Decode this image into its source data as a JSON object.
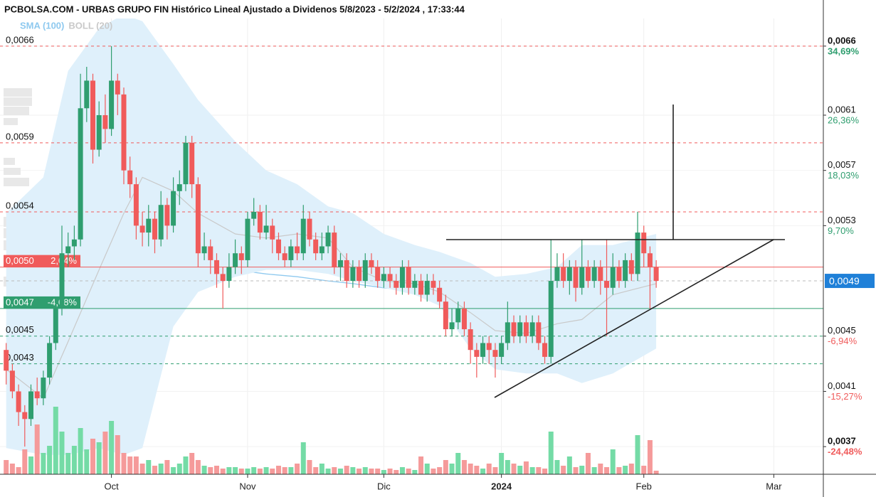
{
  "chart_data": {
    "type": "candlestick",
    "title": "PCBOLSA.COM - URBAS GRUPO FIN Histórico Lineal Ajustado a Dividenos 5/8/2023 - 5/2/2024 , 17:33:44",
    "up_color": "#2f9e6f",
    "down_color": "#f05b5b",
    "volume_up_color": "#74dba6",
    "volume_down_color": "#f59a9a",
    "ylim": [
      0.0035,
      0.0068
    ],
    "yticks": [
      {
        "value": 0.0066,
        "label": "0,0066"
      },
      {
        "value": 0.0061,
        "label": "0,0061"
      },
      {
        "value": 0.0057,
        "label": "0,0057"
      },
      {
        "value": 0.0053,
        "label": "0,0053"
      },
      {
        "value": 0.0045,
        "label": "0,0045"
      },
      {
        "value": 0.0041,
        "label": "0,0041"
      },
      {
        "value": 0.0037,
        "label": "0,0037"
      }
    ],
    "ytick_changes": [
      "34,69%",
      "26,36%",
      "18,03%",
      "9,70%",
      "-6,94%",
      "-15,27%",
      "-24,48%"
    ],
    "xlim": [
      -1,
      132
    ],
    "xticks": [
      {
        "value": 17,
        "label": "Oct"
      },
      {
        "value": 39,
        "label": "Nov"
      },
      {
        "value": 61,
        "label": "Dic"
      },
      {
        "value": 80,
        "label": "2024"
      },
      {
        "value": 103,
        "label": "Feb"
      },
      {
        "value": 124,
        "label": "Mar"
      }
    ],
    "grid": true,
    "levels": [
      {
        "value": 0.0066,
        "label": "0,0066",
        "color": "#f05b5b",
        "style": "dashed"
      },
      {
        "value": 0.0059,
        "label": "0,0059",
        "color": "#f05b5b",
        "style": "dashed"
      },
      {
        "value": 0.0054,
        "label": "0,0054",
        "color": "#f05b5b",
        "style": "dashed"
      },
      {
        "value": 0.005,
        "label": "0,0050",
        "change": "2,04%",
        "color": "#f05b5b",
        "style": "solid"
      },
      {
        "value": 0.0047,
        "label": "0,0047",
        "change": "-4,08%",
        "color": "#2f9e6f",
        "style": "solid"
      },
      {
        "value": 0.0045,
        "label": "0,0045",
        "color": "#2f9e6f",
        "style": "dashed"
      },
      {
        "value": 0.0043,
        "label": "0,0043",
        "color": "#2f9e6f",
        "style": "dashed"
      }
    ],
    "last": {
      "value": 0.0049,
      "label": "0,0049",
      "color": "#1f80d8"
    },
    "indicators": [
      {
        "name": "SMA (100)",
        "color": "#8ec9ef",
        "x": [
          0,
          6,
          10,
          15,
          19,
          22,
          27,
          31,
          37,
          42,
          47,
          52,
          56,
          61,
          66,
          70,
          75,
          79,
          84,
          89,
          93,
          98,
          105
        ],
        "values": [
          0.00539,
          0.00529,
          0.00524,
          0.00521,
          0.00524,
          0.0052,
          0.00513,
          0.00506,
          0.00498,
          0.00495,
          0.00493,
          0.0049,
          0.00488,
          0.00485,
          0.00483,
          0.00483,
          0.00482,
          0.00482,
          0.00482,
          0.00488,
          0.00489,
          0.00495,
          0.00499
        ]
      },
      {
        "name": "BOLL (20)",
        "color": "#c9c9c9",
        "band_color": "#dff0fb",
        "x": [
          0,
          6,
          10,
          15,
          19,
          22,
          27,
          31,
          37,
          42,
          47,
          52,
          56,
          61,
          66,
          70,
          75,
          79,
          84,
          89,
          93,
          98,
          105
        ],
        "upper": [
          0.00539,
          0.00565,
          0.00642,
          0.00673,
          0.00683,
          0.00678,
          0.00647,
          0.00621,
          0.00591,
          0.0057,
          0.0056,
          0.00544,
          0.00539,
          0.00524,
          0.00516,
          0.00511,
          0.00503,
          0.00493,
          0.00495,
          0.005,
          0.00516,
          0.00516,
          0.00524
        ],
        "middle": [
          0.00426,
          0.00405,
          0.00446,
          0.00498,
          0.00539,
          0.00565,
          0.00555,
          0.00539,
          0.00524,
          0.00521,
          0.00524,
          0.00521,
          0.005,
          0.0049,
          0.00488,
          0.00482,
          0.00467,
          0.00454,
          0.00452,
          0.00459,
          0.00462,
          0.0048,
          0.00488
        ],
        "lower": [
          0.00369,
          0.00364,
          0.00364,
          0.00369,
          0.00364,
          0.00369,
          0.00457,
          0.00482,
          0.00493,
          0.00498,
          0.00498,
          0.00495,
          0.0049,
          0.00485,
          0.0048,
          0.00472,
          0.00441,
          0.00426,
          0.00423,
          0.00423,
          0.00416,
          0.00423,
          0.00441
        ]
      }
    ],
    "ohlc": [
      [
        0.0044,
        0.00445,
        0.00415,
        0.00425
      ],
      [
        0.00425,
        0.0043,
        0.00405,
        0.0041
      ],
      [
        0.0041,
        0.00415,
        0.00385,
        0.00395
      ],
      [
        0.00395,
        0.004,
        0.0037,
        0.0039
      ],
      [
        0.0039,
        0.00415,
        0.00385,
        0.0041
      ],
      [
        0.0041,
        0.0042,
        0.004,
        0.00405
      ],
      [
        0.00405,
        0.00425,
        0.004,
        0.0042
      ],
      [
        0.0042,
        0.0045,
        0.00415,
        0.00445
      ],
      [
        0.00445,
        0.00475,
        0.0044,
        0.0047
      ],
      [
        0.0047,
        0.0053,
        0.00465,
        0.0051
      ],
      [
        0.0051,
        0.00525,
        0.005,
        0.00515
      ],
      [
        0.00515,
        0.0053,
        0.00505,
        0.0052
      ],
      [
        0.0052,
        0.0064,
        0.00515,
        0.00615
      ],
      [
        0.00615,
        0.00645,
        0.00605,
        0.00635
      ],
      [
        0.00635,
        0.0064,
        0.00575,
        0.00585
      ],
      [
        0.00585,
        0.0062,
        0.0058,
        0.0061
      ],
      [
        0.0061,
        0.00625,
        0.0059,
        0.006
      ],
      [
        0.006,
        0.0066,
        0.00595,
        0.00635
      ],
      [
        0.00635,
        0.0064,
        0.0061,
        0.00625
      ],
      [
        0.00625,
        0.0063,
        0.0056,
        0.0057
      ],
      [
        0.0057,
        0.0058,
        0.0055,
        0.0056
      ],
      [
        0.0056,
        0.00565,
        0.0052,
        0.0053
      ],
      [
        0.0053,
        0.0054,
        0.00515,
        0.00525
      ],
      [
        0.00525,
        0.00545,
        0.00515,
        0.00535
      ],
      [
        0.00535,
        0.0054,
        0.0051,
        0.0052
      ],
      [
        0.0052,
        0.00555,
        0.00515,
        0.00545
      ],
      [
        0.00545,
        0.0055,
        0.0052,
        0.0053
      ],
      [
        0.0053,
        0.00565,
        0.00525,
        0.00555
      ],
      [
        0.00555,
        0.0057,
        0.00545,
        0.0056
      ],
      [
        0.0056,
        0.00595,
        0.00555,
        0.0059
      ],
      [
        0.0059,
        0.00595,
        0.0055,
        0.0056
      ],
      [
        0.0056,
        0.00565,
        0.005,
        0.0051
      ],
      [
        0.0051,
        0.00525,
        0.00505,
        0.00515
      ],
      [
        0.00515,
        0.0052,
        0.00495,
        0.00505
      ],
      [
        0.00505,
        0.0051,
        0.00485,
        0.00495
      ],
      [
        0.00495,
        0.005,
        0.0047,
        0.0049
      ],
      [
        0.0049,
        0.0051,
        0.00485,
        0.005
      ],
      [
        0.005,
        0.0052,
        0.00495,
        0.0051
      ],
      [
        0.0051,
        0.00515,
        0.00495,
        0.00505
      ],
      [
        0.00505,
        0.0054,
        0.005,
        0.00535
      ],
      [
        0.00535,
        0.0055,
        0.0053,
        0.0054
      ],
      [
        0.0054,
        0.00545,
        0.0052,
        0.00525
      ],
      [
        0.00525,
        0.00545,
        0.0052,
        0.0053
      ],
      [
        0.0053,
        0.00535,
        0.0051,
        0.0052
      ],
      [
        0.0052,
        0.00525,
        0.00505,
        0.0051
      ],
      [
        0.0051,
        0.00515,
        0.005,
        0.00505
      ],
      [
        0.00505,
        0.0052,
        0.005,
        0.00515
      ],
      [
        0.00515,
        0.00525,
        0.00505,
        0.0051
      ],
      [
        0.0051,
        0.00545,
        0.00505,
        0.00535
      ],
      [
        0.00535,
        0.0054,
        0.00515,
        0.0052
      ],
      [
        0.0052,
        0.00525,
        0.00505,
        0.0051
      ],
      [
        0.0051,
        0.00525,
        0.00505,
        0.00515
      ],
      [
        0.00515,
        0.0053,
        0.0051,
        0.00525
      ],
      [
        0.00525,
        0.0053,
        0.00495,
        0.005
      ],
      [
        0.005,
        0.0051,
        0.0049,
        0.00505
      ],
      [
        0.00505,
        0.0051,
        0.00485,
        0.0049
      ],
      [
        0.0049,
        0.00505,
        0.00485,
        0.005
      ],
      [
        0.005,
        0.00505,
        0.00485,
        0.0049
      ],
      [
        0.0049,
        0.0051,
        0.00485,
        0.00505
      ],
      [
        0.00505,
        0.0051,
        0.00495,
        0.005
      ],
      [
        0.005,
        0.00505,
        0.00485,
        0.0049
      ],
      [
        0.0049,
        0.005,
        0.00485,
        0.00495
      ],
      [
        0.00495,
        0.005,
        0.00485,
        0.0049
      ],
      [
        0.0049,
        0.00495,
        0.0048,
        0.00485
      ],
      [
        0.00485,
        0.00505,
        0.0048,
        0.005
      ],
      [
        0.005,
        0.00505,
        0.0048,
        0.00485
      ],
      [
        0.00485,
        0.00495,
        0.0048,
        0.0049
      ],
      [
        0.0049,
        0.00495,
        0.00475,
        0.0048
      ],
      [
        0.0048,
        0.00495,
        0.00475,
        0.0049
      ],
      [
        0.0049,
        0.00495,
        0.0048,
        0.00485
      ],
      [
        0.00485,
        0.0049,
        0.0047,
        0.00475
      ],
      [
        0.00475,
        0.0048,
        0.0045,
        0.00455
      ],
      [
        0.00455,
        0.0047,
        0.0045,
        0.0046
      ],
      [
        0.0046,
        0.00475,
        0.00455,
        0.0047
      ],
      [
        0.0047,
        0.00475,
        0.0045,
        0.00455
      ],
      [
        0.00455,
        0.0046,
        0.0043,
        0.0044
      ],
      [
        0.0044,
        0.00445,
        0.0042,
        0.00435
      ],
      [
        0.00435,
        0.0045,
        0.0043,
        0.00445
      ],
      [
        0.00445,
        0.0045,
        0.0043,
        0.0044
      ],
      [
        0.0044,
        0.00445,
        0.0042,
        0.00435
      ],
      [
        0.00435,
        0.0045,
        0.0043,
        0.00445
      ],
      [
        0.00445,
        0.00475,
        0.0044,
        0.0046
      ],
      [
        0.0046,
        0.00465,
        0.00445,
        0.0045
      ],
      [
        0.0045,
        0.00465,
        0.00445,
        0.0046
      ],
      [
        0.0046,
        0.00465,
        0.00445,
        0.0045
      ],
      [
        0.0045,
        0.00465,
        0.00445,
        0.0046
      ],
      [
        0.0046,
        0.00465,
        0.0044,
        0.00445
      ],
      [
        0.00445,
        0.0045,
        0.0043,
        0.00435
      ],
      [
        0.00435,
        0.0052,
        0.0043,
        0.0049
      ],
      [
        0.0049,
        0.0051,
        0.00485,
        0.005
      ],
      [
        0.005,
        0.0051,
        0.00485,
        0.0049
      ],
      [
        0.0049,
        0.00505,
        0.0048,
        0.005
      ],
      [
        0.005,
        0.00505,
        0.00475,
        0.00485
      ],
      [
        0.00485,
        0.0052,
        0.0048,
        0.005
      ],
      [
        0.005,
        0.00505,
        0.00485,
        0.0049
      ],
      [
        0.0049,
        0.00505,
        0.00485,
        0.005
      ],
      [
        0.005,
        0.00505,
        0.0048,
        0.0049
      ],
      [
        0.0049,
        0.0052,
        0.0045,
        0.00485
      ],
      [
        0.00485,
        0.0051,
        0.0048,
        0.005
      ],
      [
        0.005,
        0.00505,
        0.00485,
        0.0049
      ],
      [
        0.0049,
        0.0051,
        0.00485,
        0.00505
      ],
      [
        0.00505,
        0.0051,
        0.0049,
        0.00495
      ],
      [
        0.00495,
        0.0054,
        0.0049,
        0.00525
      ],
      [
        0.00525,
        0.0053,
        0.005,
        0.0051
      ],
      [
        0.0051,
        0.00515,
        0.0047,
        0.005
      ],
      [
        0.005,
        0.00505,
        0.00485,
        0.0049
      ]
    ],
    "volume": [
      20,
      15,
      10,
      35,
      25,
      70,
      30,
      40,
      95,
      60,
      30,
      40,
      65,
      35,
      50,
      45,
      60,
      75,
      55,
      30,
      25,
      25,
      15,
      20,
      12,
      15,
      20,
      10,
      15,
      25,
      30,
      20,
      12,
      10,
      12,
      8,
      10,
      10,
      8,
      8,
      10,
      8,
      10,
      8,
      12,
      10,
      10,
      15,
      45,
      20,
      10,
      15,
      8,
      10,
      8,
      12,
      10,
      8,
      10,
      8,
      8,
      6,
      8,
      6,
      10,
      8,
      6,
      25,
      15,
      8,
      10,
      20,
      15,
      30,
      20,
      15,
      12,
      8,
      15,
      10,
      30,
      20,
      15,
      12,
      18,
      10,
      10,
      8,
      60,
      20,
      12,
      25,
      10,
      12,
      30,
      10,
      15,
      10,
      35,
      10,
      12,
      15,
      55,
      12,
      48,
      5
    ]
  }
}
